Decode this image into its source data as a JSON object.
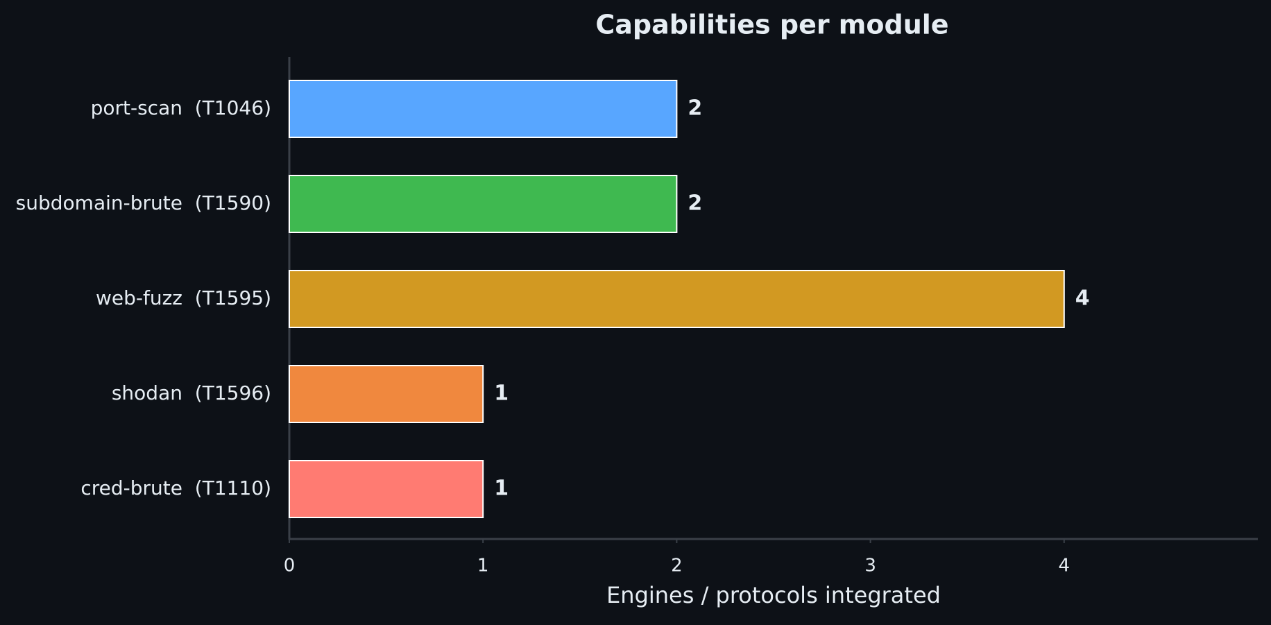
{
  "chart_data": {
    "type": "bar",
    "orientation": "horizontal",
    "title": "Capabilities per module",
    "xlabel": "Engines / protocols integrated",
    "categories": [
      "port-scan  (T1046)",
      "subdomain-brute  (T1590)",
      "web-fuzz  (T1595)",
      "shodan  (T1596)",
      "cred-brute  (T1110)"
    ],
    "values": [
      2,
      2,
      4,
      1,
      1
    ],
    "colors": [
      "#58a6ff",
      "#3fb950",
      "#d29922",
      "#f0883e",
      "#ff7b72"
    ],
    "xlim": [
      0,
      5
    ],
    "xticks": [
      0,
      1,
      2,
      3,
      4
    ],
    "grid": false
  }
}
